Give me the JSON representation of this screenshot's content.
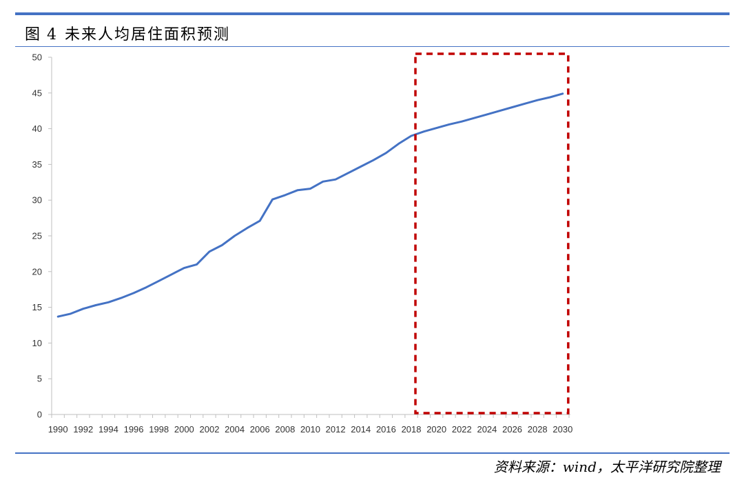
{
  "figure": {
    "label": "图",
    "number": "4",
    "title": "未来人均居住面积预测",
    "source": "资料来源：wind，太平洋研究院整理"
  },
  "colors": {
    "accent_rule": "#4472c4",
    "series_line": "#4472c4",
    "forecast_box": "#c00000",
    "axis": "#bfbfbf"
  },
  "chart_data": {
    "type": "line",
    "title": "",
    "xlabel": "",
    "ylabel": "",
    "ylim": [
      0,
      50
    ],
    "yticks": [
      0,
      5,
      10,
      15,
      20,
      25,
      30,
      35,
      40,
      45,
      50
    ],
    "xticks": [
      1990,
      1992,
      1994,
      1996,
      1998,
      2000,
      2002,
      2004,
      2006,
      2008,
      2010,
      2012,
      2014,
      2016,
      2018,
      2020,
      2022,
      2024,
      2026,
      2028,
      2030
    ],
    "grid": false,
    "legend": "none",
    "forecast_region": {
      "x_start": 2018,
      "x_end": 2030,
      "style": "dashed-box"
    },
    "series": [
      {
        "x": [
          1990,
          1991,
          1992,
          1993,
          1994,
          1995,
          1996,
          1997,
          1998,
          1999,
          2000,
          2001,
          2002,
          2003,
          2004,
          2005,
          2006,
          2007,
          2008,
          2009,
          2010,
          2011,
          2012,
          2013,
          2014,
          2015,
          2016,
          2017,
          2018,
          2019,
          2020,
          2021,
          2022,
          2023,
          2024,
          2025,
          2026,
          2027,
          2028,
          2029,
          2030
        ],
        "values": [
          13.7,
          14.1,
          14.8,
          15.3,
          15.7,
          16.3,
          17.0,
          17.8,
          18.7,
          19.6,
          20.5,
          21.0,
          22.8,
          23.7,
          25.0,
          26.1,
          27.1,
          30.1,
          30.7,
          31.4,
          31.6,
          32.6,
          32.9,
          33.8,
          34.7,
          35.6,
          36.6,
          37.9,
          39.0,
          39.6,
          40.1,
          40.6,
          41.0,
          41.5,
          42.0,
          42.5,
          43.0,
          43.5,
          44.0,
          44.4,
          44.9
        ]
      }
    ]
  }
}
